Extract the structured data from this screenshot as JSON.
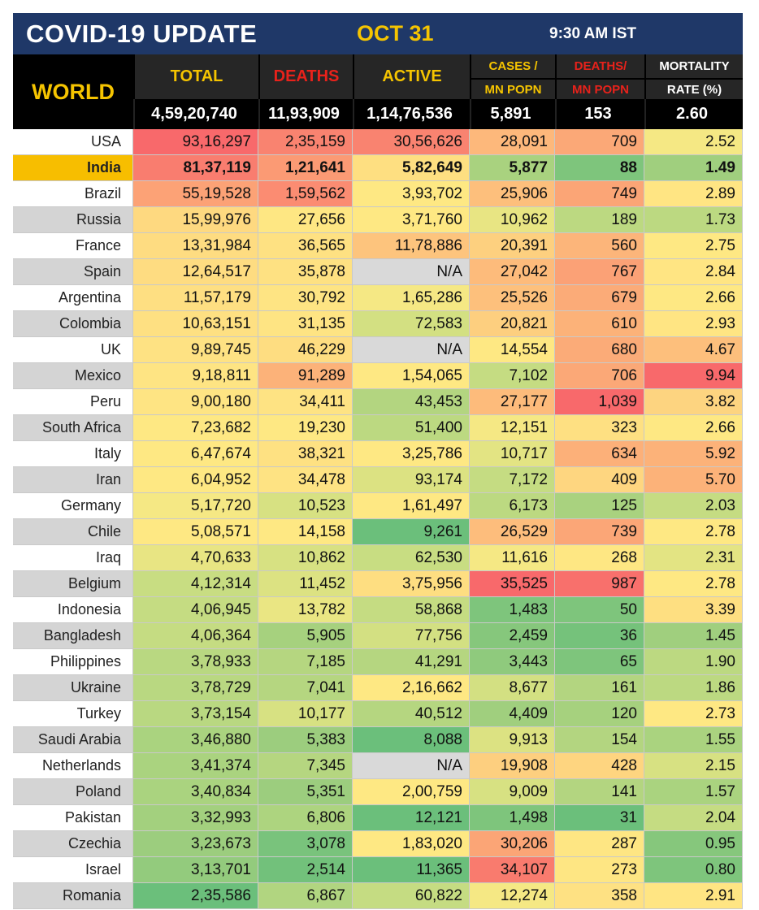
{
  "header": {
    "title": "COVID-19 UPDATE",
    "date": "OCT 31",
    "time": "9:30 AM IST"
  },
  "columns": {
    "region": "WORLD",
    "total": "TOTAL",
    "deaths": "DEATHS",
    "active": "ACTIVE",
    "cases_top": "CASES /",
    "cases_bot": "MN POPN",
    "deaths_top": "DEATHS/",
    "deaths_bot": "MN POPN",
    "mort_top": "MORTALITY",
    "mort_bot": "RATE (%)"
  },
  "world": {
    "total": "4,59,20,740",
    "deaths": "11,93,909",
    "active": "1,14,76,536",
    "cases_mn": "5,891",
    "deaths_mn": "153",
    "mortality": "2.60"
  },
  "rows": [
    {
      "country": "USA",
      "total": "93,16,297",
      "deaths": "2,35,159",
      "active": "30,56,626",
      "cases_mn": "28,091",
      "deaths_mn": "709",
      "mortality": "2.52",
      "colors": [
        "#f8696b",
        "#f98370",
        "#f98370",
        "#fdb87b",
        "#fba877",
        "#f5e884"
      ]
    },
    {
      "country": "India",
      "total": "81,37,119",
      "deaths": "1,21,641",
      "active": "5,82,649",
      "cases_mn": "5,877",
      "deaths_mn": "88",
      "mortality": "1.49",
      "colors": [
        "#f97d6f",
        "#fb9a74",
        "#fedf81",
        "#a9d27f",
        "#7ec57c",
        "#a0cf7e"
      ]
    },
    {
      "country": "Brazil",
      "total": "55,19,528",
      "deaths": "1,59,562",
      "active": "3,93,702",
      "cases_mn": "25,906",
      "deaths_mn": "749",
      "mortality": "2.89",
      "colors": [
        "#fca276",
        "#fb8c72",
        "#fee883",
        "#fdbf7c",
        "#fba576",
        "#ffe583"
      ]
    },
    {
      "country": "Russia",
      "total": "15,99,976",
      "deaths": "27,656",
      "active": "3,71,760",
      "cases_mn": "10,962",
      "deaths_mn": "189",
      "mortality": "1.73",
      "colors": [
        "#fed980",
        "#fee783",
        "#fee883",
        "#e8e583",
        "#bcd981",
        "#bcd981"
      ]
    },
    {
      "country": "France",
      "total": "13,31,984",
      "deaths": "36,565",
      "active": "11,78,886",
      "cases_mn": "20,391",
      "deaths_mn": "560",
      "mortality": "2.75",
      "colors": [
        "#fedc81",
        "#fee182",
        "#fdc47d",
        "#fdd07f",
        "#fcb57a",
        "#fee883"
      ]
    },
    {
      "country": "Spain",
      "total": "12,64,517",
      "deaths": "35,878",
      "active": "N/A",
      "cases_mn": "27,042",
      "deaths_mn": "767",
      "mortality": "2.84",
      "colors": [
        "#fedc81",
        "#fee182",
        "#d9d9d9",
        "#fdbb7b",
        "#fba176",
        "#ffe583"
      ]
    },
    {
      "country": "Argentina",
      "total": "11,57,179",
      "deaths": "30,792",
      "active": "1,65,286",
      "cases_mn": "25,526",
      "deaths_mn": "679",
      "mortality": "2.66",
      "colors": [
        "#fedf82",
        "#fee483",
        "#f5e884",
        "#fdc07c",
        "#fbab78",
        "#fee883"
      ]
    },
    {
      "country": "Colombia",
      "total": "10,63,151",
      "deaths": "31,135",
      "active": "72,583",
      "cases_mn": "20,821",
      "deaths_mn": "610",
      "mortality": "2.93",
      "colors": [
        "#fee082",
        "#fee483",
        "#d3e082",
        "#fdcf7f",
        "#fcb279",
        "#ffe583"
      ]
    },
    {
      "country": "UK",
      "total": "9,89,745",
      "deaths": "46,229",
      "active": "N/A",
      "cases_mn": "14,554",
      "deaths_mn": "680",
      "mortality": "4.67",
      "colors": [
        "#fee283",
        "#fedd81",
        "#d9d9d9",
        "#fee883",
        "#fbab78",
        "#fdbf7c"
      ]
    },
    {
      "country": "Mexico",
      "total": "9,18,811",
      "deaths": "91,289",
      "active": "1,54,065",
      "cases_mn": "7,102",
      "deaths_mn": "706",
      "mortality": "9.94",
      "colors": [
        "#fee483",
        "#fcb279",
        "#fee883",
        "#c5dc82",
        "#fba877",
        "#f8696b"
      ]
    },
    {
      "country": "Peru",
      "total": "9,00,180",
      "deaths": "34,411",
      "active": "43,453",
      "cases_mn": "27,177",
      "deaths_mn": "1,039",
      "mortality": "3.82",
      "colors": [
        "#fee483",
        "#fee383",
        "#b3d580",
        "#fdbb7b",
        "#f8696b",
        "#fdd480"
      ]
    },
    {
      "country": "South Africa",
      "total": "7,23,682",
      "deaths": "19,230",
      "active": "51,400",
      "cases_mn": "12,151",
      "deaths_mn": "323",
      "mortality": "2.66",
      "colors": [
        "#fee883",
        "#fee883",
        "#bcd981",
        "#f5e884",
        "#fee082",
        "#fee883"
      ]
    },
    {
      "country": "Italy",
      "total": "6,47,674",
      "deaths": "38,321",
      "active": "3,25,786",
      "cases_mn": "10,717",
      "deaths_mn": "634",
      "mortality": "5.92",
      "colors": [
        "#fee883",
        "#fee182",
        "#fee883",
        "#e3e483",
        "#fcb079",
        "#fcb279"
      ]
    },
    {
      "country": "Iran",
      "total": "6,04,952",
      "deaths": "34,478",
      "active": "93,174",
      "cases_mn": "7,172",
      "deaths_mn": "409",
      "mortality": "5.70",
      "colors": [
        "#fee883",
        "#fee383",
        "#dce282",
        "#c5dc82",
        "#fed680",
        "#fcb279"
      ]
    },
    {
      "country": "Germany",
      "total": "5,17,720",
      "deaths": "10,523",
      "active": "1,61,497",
      "cases_mn": "6,173",
      "deaths_mn": "125",
      "mortality": "2.03",
      "colors": [
        "#f5e884",
        "#d7e182",
        "#fee883",
        "#bcd981",
        "#a9d27f",
        "#c5dc82"
      ]
    },
    {
      "country": "Chile",
      "total": "5,08,571",
      "deaths": "14,158",
      "active": "9,261",
      "cases_mn": "26,529",
      "deaths_mn": "739",
      "mortality": "2.78",
      "colors": [
        "#fee883",
        "#fee883",
        "#6bbf7b",
        "#fdbd7c",
        "#fba677",
        "#fee883"
      ]
    },
    {
      "country": "Iraq",
      "total": "4,70,633",
      "deaths": "10,862",
      "active": "62,530",
      "cases_mn": "11,616",
      "deaths_mn": "268",
      "mortality": "2.31",
      "colors": [
        "#e8e583",
        "#d7e182",
        "#c8dd82",
        "#f5e884",
        "#fee783",
        "#e3e483"
      ]
    },
    {
      "country": "Belgium",
      "total": "4,12,314",
      "deaths": "11,452",
      "active": "3,75,956",
      "cases_mn": "35,525",
      "deaths_mn": "987",
      "mortality": "2.78",
      "colors": [
        "#c8dd82",
        "#dce282",
        "#fede81",
        "#f8696b",
        "#f8706c",
        "#fee883"
      ]
    },
    {
      "country": "Indonesia",
      "total": "4,06,945",
      "deaths": "13,782",
      "active": "58,868",
      "cases_mn": "1,483",
      "deaths_mn": "50",
      "mortality": "3.39",
      "colors": [
        "#c5dc82",
        "#eae683",
        "#c5dc82",
        "#7ec57c",
        "#7ec57c",
        "#fedf81"
      ]
    },
    {
      "country": "Bangladesh",
      "total": "4,06,364",
      "deaths": "5,905",
      "active": "77,756",
      "cases_mn": "2,459",
      "deaths_mn": "36",
      "mortality": "1.45",
      "colors": [
        "#c5dc82",
        "#a6d17e",
        "#d3e082",
        "#86c77c",
        "#75c27b",
        "#a0cf7e"
      ]
    },
    {
      "country": "Philippines",
      "total": "3,78,933",
      "deaths": "7,185",
      "active": "41,291",
      "cases_mn": "3,443",
      "deaths_mn": "65",
      "mortality": "1.90",
      "colors": [
        "#b9d881",
        "#b5d680",
        "#b5d680",
        "#8fca7d",
        "#7ec57c",
        "#bcd981"
      ]
    },
    {
      "country": "Ukraine",
      "total": "3,78,729",
      "deaths": "7,041",
      "active": "2,16,662",
      "cases_mn": "8,677",
      "deaths_mn": "161",
      "mortality": "1.86",
      "colors": [
        "#b9d881",
        "#b5d680",
        "#fee883",
        "#d3e082",
        "#b3d580",
        "#bcd981"
      ]
    },
    {
      "country": "Turkey",
      "total": "3,73,154",
      "deaths": "10,177",
      "active": "40,512",
      "cases_mn": "4,409",
      "deaths_mn": "120",
      "mortality": "2.73",
      "colors": [
        "#b9d881",
        "#d7e182",
        "#b5d680",
        "#a0cf7e",
        "#a6d17e",
        "#fee883"
      ]
    },
    {
      "country": "Saudi Arabia",
      "total": "3,46,880",
      "deaths": "5,383",
      "active": "8,088",
      "cases_mn": "9,913",
      "deaths_mn": "154",
      "mortality": "1.55",
      "colors": [
        "#aad37f",
        "#9ccd7e",
        "#6bbf7b",
        "#dce282",
        "#b3d580",
        "#aad37f"
      ]
    },
    {
      "country": "Netherlands",
      "total": "3,41,374",
      "deaths": "7,345",
      "active": "N/A",
      "cases_mn": "19,908",
      "deaths_mn": "428",
      "mortality": "2.15",
      "colors": [
        "#aad37f",
        "#b5d680",
        "#d9d9d9",
        "#fdcf7f",
        "#fed580",
        "#d7e182"
      ]
    },
    {
      "country": "Poland",
      "total": "3,40,834",
      "deaths": "5,351",
      "active": "2,00,759",
      "cases_mn": "9,009",
      "deaths_mn": "141",
      "mortality": "1.57",
      "colors": [
        "#aad37f",
        "#9ccd7e",
        "#fee883",
        "#d7e182",
        "#b3d580",
        "#aad37f"
      ]
    },
    {
      "country": "Pakistan",
      "total": "3,32,993",
      "deaths": "6,806",
      "active": "12,121",
      "cases_mn": "1,498",
      "deaths_mn": "31",
      "mortality": "2.04",
      "colors": [
        "#a3d07e",
        "#adD47f",
        "#6bbf7b",
        "#7ec57c",
        "#6bbf7b",
        "#c5dc82"
      ]
    },
    {
      "country": "Czechia",
      "total": "3,23,673",
      "deaths": "3,078",
      "active": "1,83,020",
      "cases_mn": "30,206",
      "deaths_mn": "287",
      "mortality": "0.95",
      "colors": [
        "#9ccd7e",
        "#79c37c",
        "#fee883",
        "#fba576",
        "#fee683",
        "#86c77c"
      ]
    },
    {
      "country": "Israel",
      "total": "3,13,701",
      "deaths": "2,514",
      "active": "11,365",
      "cases_mn": "34,107",
      "deaths_mn": "273",
      "mortality": "0.80",
      "colors": [
        "#93cb7d",
        "#72c17b",
        "#6bbf7b",
        "#f97b6e",
        "#fee683",
        "#7ec57c"
      ]
    },
    {
      "country": "Romania",
      "total": "2,35,586",
      "deaths": "6,867",
      "active": "60,822",
      "cases_mn": "12,274",
      "deaths_mn": "358",
      "mortality": "2.91",
      "colors": [
        "#6bbf7b",
        "#b1d580",
        "#c5dc82",
        "#f5e884",
        "#fee183",
        "#ffe583"
      ]
    }
  ]
}
